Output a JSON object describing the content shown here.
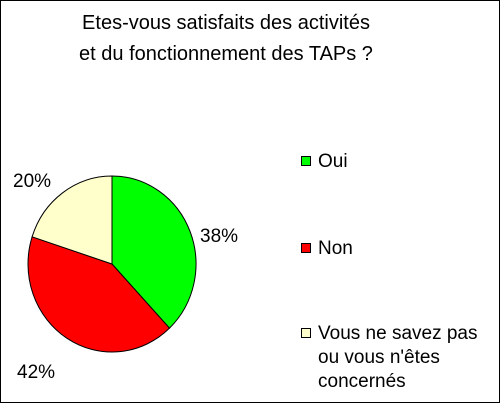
{
  "chart_data": {
    "type": "pie",
    "title_lines": [
      "Etes-vous satisfaits des activités",
      "et du fonctionnement des TAPs ?"
    ],
    "slices": [
      {
        "label": "Oui",
        "value": 38,
        "display": "38%",
        "color": "#00ff00"
      },
      {
        "label": "Non",
        "value": 42,
        "display": "42%",
        "color": "#ff0000"
      },
      {
        "label_lines": [
          "Vous ne savez pas",
          "ou vous n'êtes",
          "concernés"
        ],
        "value": 20,
        "display": "20%",
        "color": "#ffffcc"
      }
    ],
    "legend_position": "right"
  }
}
